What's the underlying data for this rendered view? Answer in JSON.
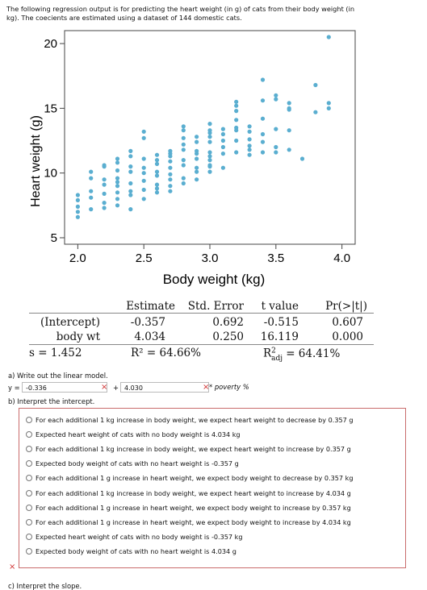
{
  "intro_line1": "The following regression output is for predicting the heart weight (in g) of cats from their body weight (in",
  "intro_line2": "kg). The coecients are estimated using a dataset of 144 domestic cats.",
  "chart_data": {
    "type": "scatter",
    "xlabel": "Body weight (kg)",
    "ylabel": "Heart weight (g)",
    "xlim": [
      1.9,
      4.1
    ],
    "ylim": [
      4.5,
      21.0
    ],
    "xticks": [
      "2.0",
      "2.5",
      "3.0",
      "3.5",
      "4.0"
    ],
    "xtick_values": [
      2.0,
      2.5,
      3.0,
      3.5,
      4.0
    ],
    "yticks": [
      "5",
      "10",
      "15",
      "20"
    ],
    "ytick_values": [
      5,
      10,
      15,
      20
    ],
    "point_color": "#5aaed0",
    "points": [
      [
        2.0,
        7.0
      ],
      [
        2.0,
        7.4
      ],
      [
        2.0,
        7.9
      ],
      [
        2.0,
        8.3
      ],
      [
        2.0,
        6.6
      ],
      [
        2.1,
        7.2
      ],
      [
        2.1,
        8.1
      ],
      [
        2.1,
        9.6
      ],
      [
        2.1,
        10.1
      ],
      [
        2.1,
        8.6
      ],
      [
        2.2,
        7.3
      ],
      [
        2.2,
        7.7
      ],
      [
        2.2,
        8.4
      ],
      [
        2.2,
        9.1
      ],
      [
        2.2,
        9.5
      ],
      [
        2.2,
        10.5
      ],
      [
        2.2,
        10.6
      ],
      [
        2.3,
        7.5
      ],
      [
        2.3,
        8.0
      ],
      [
        2.3,
        8.5
      ],
      [
        2.3,
        9.0
      ],
      [
        2.3,
        9.3
      ],
      [
        2.3,
        9.6
      ],
      [
        2.3,
        10.2
      ],
      [
        2.3,
        10.8
      ],
      [
        2.3,
        11.1
      ],
      [
        2.4,
        7.2
      ],
      [
        2.4,
        8.3
      ],
      [
        2.4,
        8.6
      ],
      [
        2.4,
        9.2
      ],
      [
        2.4,
        10.1
      ],
      [
        2.4,
        10.5
      ],
      [
        2.4,
        11.3
      ],
      [
        2.4,
        11.7
      ],
      [
        2.5,
        8.0
      ],
      [
        2.5,
        8.7
      ],
      [
        2.5,
        9.4
      ],
      [
        2.5,
        10.0
      ],
      [
        2.5,
        10.4
      ],
      [
        2.5,
        11.1
      ],
      [
        2.5,
        12.7
      ],
      [
        2.5,
        13.2
      ],
      [
        2.6,
        8.5
      ],
      [
        2.6,
        8.8
      ],
      [
        2.6,
        9.1
      ],
      [
        2.6,
        9.8
      ],
      [
        2.6,
        10.1
      ],
      [
        2.6,
        10.7
      ],
      [
        2.6,
        11.0
      ],
      [
        2.6,
        11.4
      ],
      [
        2.7,
        8.6
      ],
      [
        2.7,
        9.0
      ],
      [
        2.7,
        9.5
      ],
      [
        2.7,
        9.9
      ],
      [
        2.7,
        10.4
      ],
      [
        2.7,
        10.9
      ],
      [
        2.7,
        11.3
      ],
      [
        2.7,
        11.5
      ],
      [
        2.7,
        11.7
      ],
      [
        2.8,
        9.2
      ],
      [
        2.8,
        9.6
      ],
      [
        2.8,
        10.6
      ],
      [
        2.8,
        11.0
      ],
      [
        2.8,
        11.8
      ],
      [
        2.8,
        12.2
      ],
      [
        2.8,
        12.7
      ],
      [
        2.8,
        13.3
      ],
      [
        2.8,
        13.6
      ],
      [
        2.9,
        9.5
      ],
      [
        2.9,
        10.1
      ],
      [
        2.9,
        10.4
      ],
      [
        2.9,
        11.1
      ],
      [
        2.9,
        11.5
      ],
      [
        2.9,
        11.7
      ],
      [
        2.9,
        12.4
      ],
      [
        2.9,
        12.8
      ],
      [
        3.0,
        10.1
      ],
      [
        3.0,
        10.5
      ],
      [
        3.0,
        10.6
      ],
      [
        3.0,
        11.0
      ],
      [
        3.0,
        11.3
      ],
      [
        3.0,
        11.6
      ],
      [
        3.0,
        12.4
      ],
      [
        3.0,
        12.8
      ],
      [
        3.0,
        13.1
      ],
      [
        3.0,
        13.3
      ],
      [
        3.0,
        13.8
      ],
      [
        3.1,
        10.4
      ],
      [
        3.1,
        11.5
      ],
      [
        3.1,
        12.0
      ],
      [
        3.1,
        12.5
      ],
      [
        3.1,
        13.0
      ],
      [
        3.1,
        13.4
      ],
      [
        3.2,
        11.6
      ],
      [
        3.2,
        12.5
      ],
      [
        3.2,
        13.3
      ],
      [
        3.2,
        13.5
      ],
      [
        3.2,
        14.1
      ],
      [
        3.2,
        14.8
      ],
      [
        3.2,
        15.2
      ],
      [
        3.2,
        15.5
      ],
      [
        3.3,
        11.4
      ],
      [
        3.3,
        11.8
      ],
      [
        3.3,
        12.1
      ],
      [
        3.3,
        12.6
      ],
      [
        3.3,
        13.2
      ],
      [
        3.3,
        13.6
      ],
      [
        3.4,
        11.6
      ],
      [
        3.4,
        12.4
      ],
      [
        3.4,
        13.0
      ],
      [
        3.4,
        14.2
      ],
      [
        3.4,
        15.6
      ],
      [
        3.4,
        17.2
      ],
      [
        3.5,
        11.6
      ],
      [
        3.5,
        12.0
      ],
      [
        3.5,
        13.4
      ],
      [
        3.5,
        15.7
      ],
      [
        3.5,
        16.0
      ],
      [
        3.6,
        11.8
      ],
      [
        3.6,
        13.3
      ],
      [
        3.6,
        14.9
      ],
      [
        3.6,
        15.0
      ],
      [
        3.6,
        15.4
      ],
      [
        3.7,
        11.1
      ],
      [
        3.8,
        14.7
      ],
      [
        3.8,
        16.8
      ],
      [
        3.9,
        15.0
      ],
      [
        3.9,
        15.4
      ],
      [
        3.9,
        20.5
      ]
    ]
  },
  "table": {
    "headers": [
      "Estimate",
      "Std. Error",
      "t value",
      "Pr(>|t|)"
    ],
    "rows": [
      {
        "label": "(Intercept)",
        "estimate": "-0.357",
        "se": "0.692",
        "t": "-0.515",
        "p": "0.607"
      },
      {
        "label": "body wt",
        "estimate": "4.034",
        "se": "0.250",
        "t": "16.119",
        "p": "0.000"
      }
    ],
    "s": "s = 1.452",
    "r2": "R² = 64.66%",
    "r2adj_pre": "R",
    "r2adj_sup": "2",
    "r2adj_sub": "adj",
    "r2adj_post": " = 64.41%"
  },
  "part_a": {
    "label": "a) Write out the linear model.",
    "y_prefix": "y =",
    "intercept_value": "-0.336",
    "plus": "+",
    "slope_value": "4.030",
    "suffix": "* poverty %",
    "error_mark": "×"
  },
  "part_b": {
    "label": "b) Interpret the intercept.",
    "options": [
      "For each additional 1 kg increase in body weight, we expect heart weight to decrease by 0.357 g",
      "Expected heart weight of cats with no body weight is 4.034 kg",
      "For each additional 1 kg increase in body weight, we expect heart weight to increase by 0.357 g",
      "Expected body weight of cats with no heart weight is -0.357 g",
      "For each additional 1 g increase in heart weight, we expect body weight to decrease by 0.357 kg",
      "For each additional 1 kg increase in body weight, we expect heart weight to increase by 4.034 g",
      "For each additional 1 g increase in heart weight, we expect body weight to increase by 0.357 kg",
      "For each additional 1 g increase in heart weight, we expect body weight to increase by 4.034 kg",
      "Expected heart weight of cats with no body weight is -0.357 kg",
      "Expected body weight of cats with no heart weight is 4.034 g"
    ],
    "error_mark": "×"
  },
  "part_c": {
    "label": "c) Interpret the slope."
  }
}
